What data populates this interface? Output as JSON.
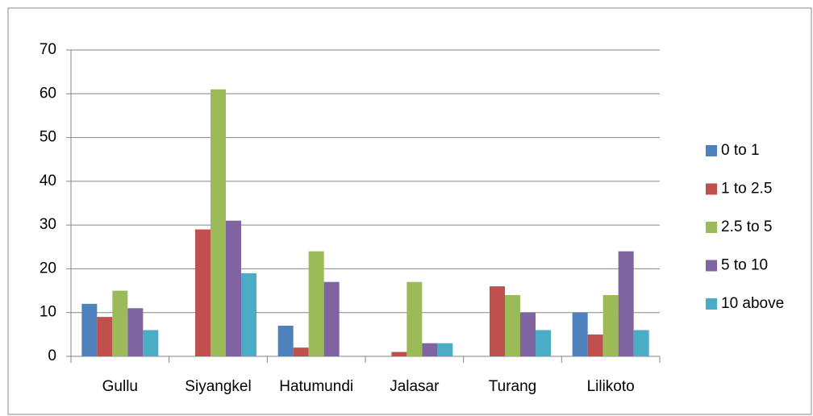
{
  "chart_data": {
    "type": "bar",
    "categories": [
      "Gullu",
      "Siyangkel",
      "Hatumundi",
      "Jalasar",
      "Turang",
      "Lilikoto"
    ],
    "series": [
      {
        "name": "0 to 1",
        "color": "#4f81bd",
        "values": [
          12,
          0,
          7,
          0,
          0,
          10
        ]
      },
      {
        "name": "1 to 2.5",
        "color": "#c0504d",
        "values": [
          9,
          29,
          2,
          1,
          16,
          5
        ]
      },
      {
        "name": "2.5 to 5",
        "color": "#9bbb59",
        "values": [
          15,
          61,
          24,
          17,
          14,
          14
        ]
      },
      {
        "name": "5 to 10",
        "color": "#8064a2",
        "values": [
          11,
          31,
          17,
          3,
          10,
          24
        ]
      },
      {
        "name": "10 above",
        "color": "#4bacc6",
        "values": [
          6,
          19,
          0,
          3,
          6,
          6
        ]
      }
    ],
    "ylim": [
      0,
      70
    ],
    "yticks": [
      0,
      10,
      20,
      30,
      40,
      50,
      60,
      70
    ],
    "grid": true,
    "legend": "right"
  }
}
